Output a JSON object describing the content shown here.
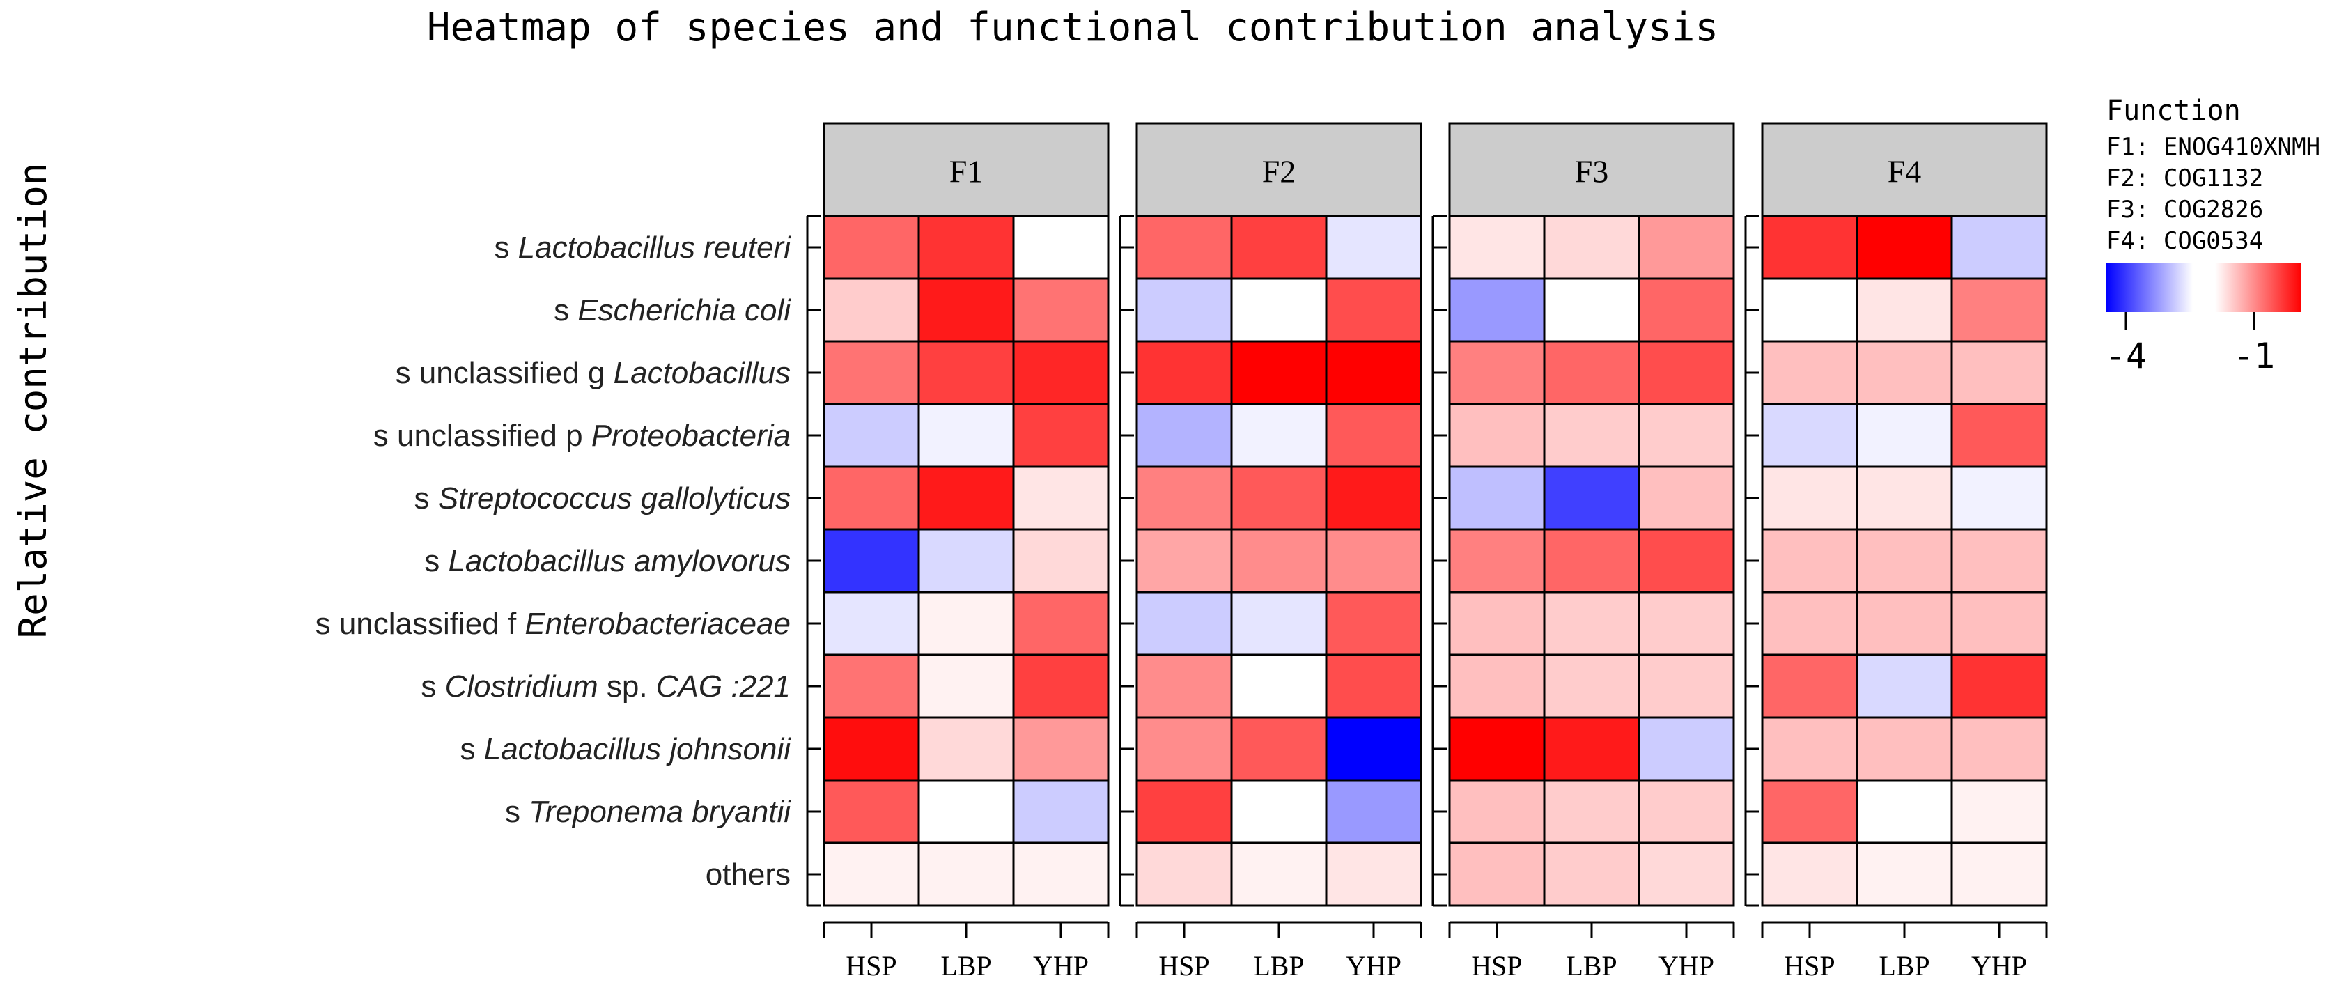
{
  "chart_data": {
    "type": "heatmap",
    "title": "Heatmap of species and functional contribution analysis",
    "ylabel": "Relative contribution",
    "rows": [
      {
        "parts": [
          {
            "t": "s "
          },
          {
            "t": "Lactobacillus reuteri",
            "i": true
          }
        ]
      },
      {
        "parts": [
          {
            "t": "s "
          },
          {
            "t": "Escherichia coli",
            "i": true
          }
        ]
      },
      {
        "parts": [
          {
            "t": "s unclassified g "
          },
          {
            "t": "Lactobacillus",
            "i": true
          }
        ]
      },
      {
        "parts": [
          {
            "t": "s unclassified p "
          },
          {
            "t": "Proteobacteria",
            "i": true
          }
        ]
      },
      {
        "parts": [
          {
            "t": "s "
          },
          {
            "t": "Streptococcus gallolyticus",
            "i": true
          }
        ]
      },
      {
        "parts": [
          {
            "t": "s "
          },
          {
            "t": "Lactobacillus amylovorus",
            "i": true
          }
        ]
      },
      {
        "parts": [
          {
            "t": "s unclassified f "
          },
          {
            "t": "Enterobacteriaceae",
            "i": true
          }
        ]
      },
      {
        "parts": [
          {
            "t": "s "
          },
          {
            "t": "Clostridium",
            "i": true
          },
          {
            "t": " sp. "
          },
          {
            "t": "CAG :221",
            "i": true
          }
        ]
      },
      {
        "parts": [
          {
            "t": "s "
          },
          {
            "t": "Lactobacillus johnsonii",
            "i": true
          }
        ]
      },
      {
        "parts": [
          {
            "t": "s "
          },
          {
            "t": "Treponema bryantii",
            "i": true
          }
        ]
      },
      {
        "parts": [
          {
            "t": "others"
          }
        ]
      }
    ],
    "facets": [
      {
        "name": "F1",
        "columns": [
          "HSP",
          "LBP",
          "YHP"
        ],
        "values": [
          [
            -1.8,
            -1.4,
            -3.0
          ],
          [
            -2.6,
            -1.2,
            -1.9
          ],
          [
            -1.9,
            -1.5,
            -1.3
          ],
          [
            -3.4,
            -3.1,
            -1.5
          ],
          [
            -1.8,
            -1.2,
            -2.8
          ],
          [
            -4.6,
            -3.3,
            -2.7
          ],
          [
            -3.2,
            -2.9,
            -1.8
          ],
          [
            -1.9,
            -2.9,
            -1.5
          ],
          [
            -1.1,
            -2.7,
            -2.2
          ],
          [
            -1.7,
            -3.0,
            -3.4
          ],
          [
            -2.9,
            -2.9,
            -2.9
          ]
        ]
      },
      {
        "name": "F2",
        "columns": [
          "HSP",
          "LBP",
          "YHP"
        ],
        "values": [
          [
            -1.8,
            -1.5,
            -3.2
          ],
          [
            -3.4,
            -3.0,
            -1.6
          ],
          [
            -1.4,
            -1.0,
            -1.0
          ],
          [
            -3.6,
            -3.1,
            -1.7
          ],
          [
            -2.0,
            -1.7,
            -1.2
          ],
          [
            -2.3,
            -2.1,
            -2.1
          ],
          [
            -3.4,
            -3.2,
            -1.7
          ],
          [
            -2.1,
            -3.0,
            -1.6
          ],
          [
            -2.1,
            -1.7,
            -5.0
          ],
          [
            -1.5,
            -3.0,
            -3.8
          ],
          [
            -2.7,
            -2.9,
            -2.8
          ]
        ]
      },
      {
        "name": "F3",
        "columns": [
          "HSP",
          "LBP",
          "YHP"
        ],
        "values": [
          [
            -2.8,
            -2.7,
            -2.2
          ],
          [
            -3.8,
            -3.0,
            -1.8
          ],
          [
            -2.0,
            -1.8,
            -1.6
          ],
          [
            -2.5,
            -2.6,
            -2.6
          ],
          [
            -3.5,
            -4.5,
            -2.5
          ],
          [
            -2.0,
            -1.8,
            -1.6
          ],
          [
            -2.5,
            -2.6,
            -2.6
          ],
          [
            -2.5,
            -2.6,
            -2.6
          ],
          [
            -1.0,
            -1.2,
            -3.4
          ],
          [
            -2.5,
            -2.6,
            -2.6
          ],
          [
            -2.5,
            -2.6,
            -2.7
          ]
        ]
      },
      {
        "name": "F4",
        "columns": [
          "HSP",
          "LBP",
          "YHP"
        ],
        "values": [
          [
            -1.4,
            -1.0,
            -3.4
          ],
          [
            -3.0,
            -2.8,
            -2.0
          ],
          [
            -2.5,
            -2.5,
            -2.5
          ],
          [
            -3.3,
            -3.1,
            -1.7
          ],
          [
            -2.8,
            -2.8,
            -3.1
          ],
          [
            -2.5,
            -2.5,
            -2.5
          ],
          [
            -2.5,
            -2.5,
            -2.5
          ],
          [
            -1.8,
            -3.3,
            -1.4
          ],
          [
            -2.5,
            -2.5,
            -2.5
          ],
          [
            -1.8,
            -3.0,
            -2.9
          ],
          [
            -2.8,
            -2.9,
            -2.9
          ]
        ]
      }
    ],
    "legend": {
      "title": "Function",
      "entries": [
        "F1: ENOG410XNMH",
        "F2: COG1132",
        "F3: COG2826",
        "F4: COG0534"
      ],
      "ticks": [
        {
          "label": "-4",
          "value": -4
        },
        {
          "label": "-1",
          "value": -1
        }
      ],
      "low_color": "#0000ff",
      "high_color": "#ff0000"
    }
  },
  "colors": {
    "strip_fill": "#cccccc",
    "cell_border": "#000000",
    "neutral": "#ffffff"
  }
}
